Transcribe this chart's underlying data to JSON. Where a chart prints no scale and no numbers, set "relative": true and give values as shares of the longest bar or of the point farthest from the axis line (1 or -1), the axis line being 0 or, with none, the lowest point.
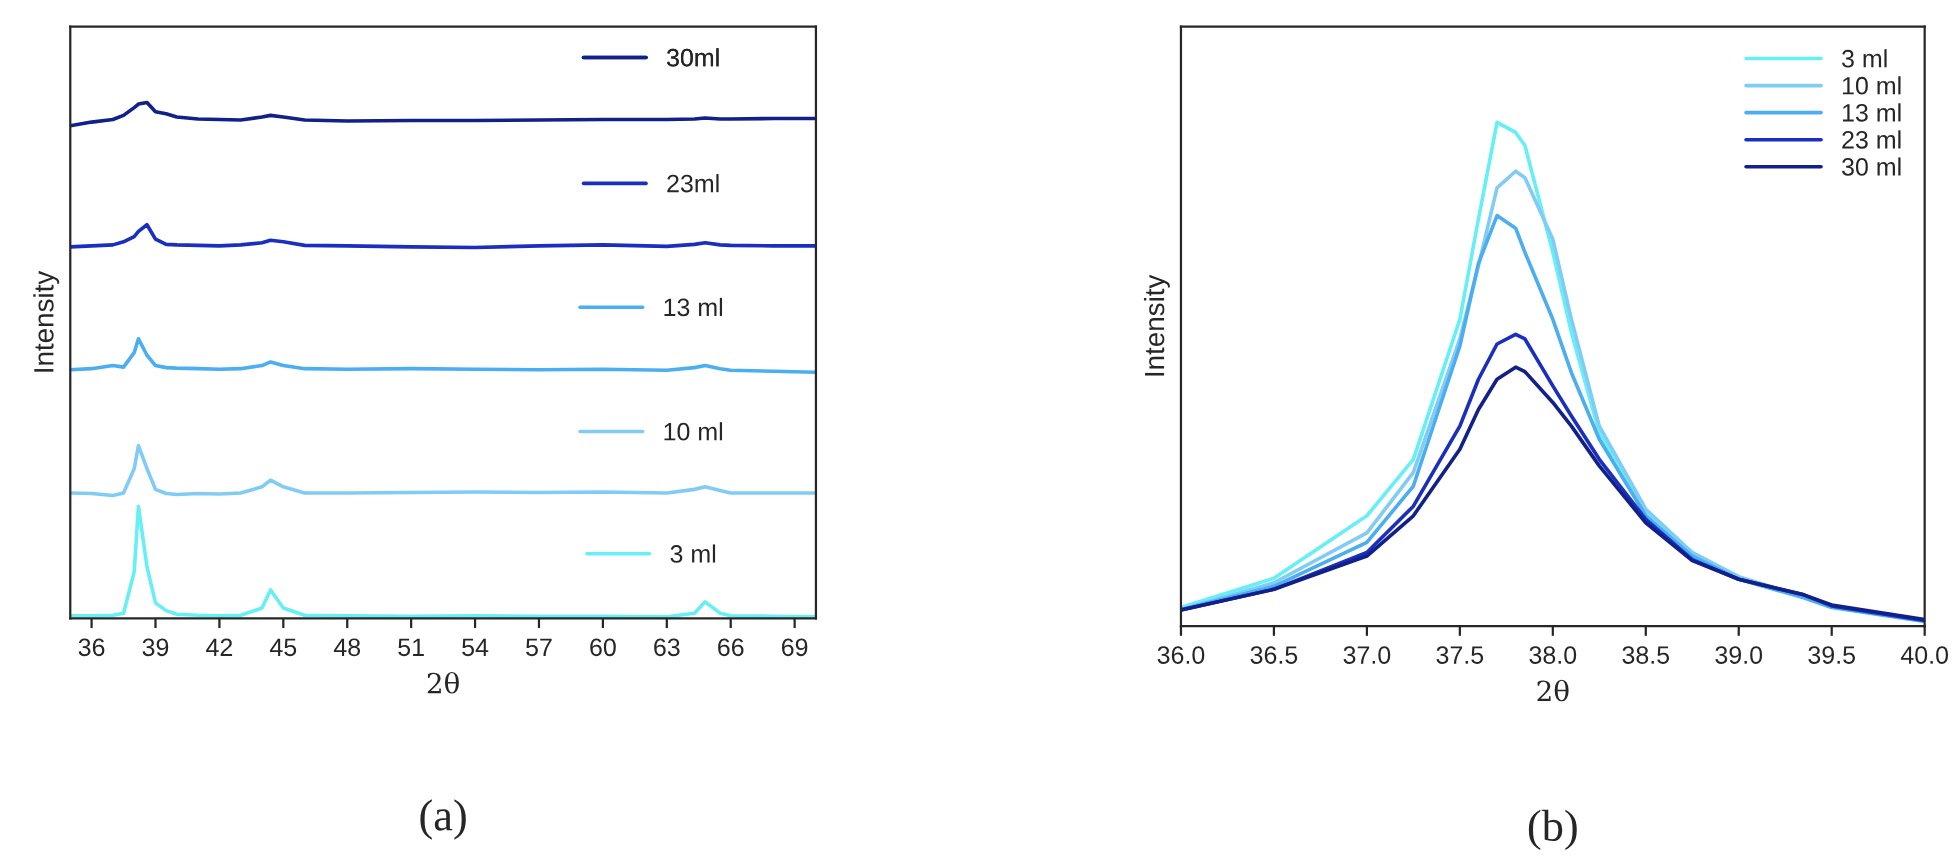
{
  "chart_data": [
    {
      "type": "line",
      "relative": true,
      "xlabel": "2θ",
      "ylabel": "Intensity",
      "xlim": [
        35,
        70
      ],
      "xticks": [
        36,
        39,
        42,
        45,
        48,
        51,
        54,
        57,
        60,
        63,
        66,
        69
      ],
      "legend": "right",
      "annotations": [
        "(a)"
      ],
      "x": [
        35,
        36,
        37,
        37.5,
        38,
        38.2,
        38.6,
        39,
        39.5,
        40,
        41,
        42,
        43,
        44,
        44.4,
        45,
        46,
        48,
        51,
        54,
        57,
        60,
        63,
        64.3,
        64.8,
        65.5,
        66,
        68,
        70
      ],
      "series": [
        {
          "name": "3 ml",
          "color": "#66f0f5",
          "values": [
            0.005,
            0.005,
            0.006,
            0.01,
            0.09,
            0.217,
            0.1,
            0.03,
            0.015,
            0.008,
            0.006,
            0.005,
            0.006,
            0.02,
            0.055,
            0.02,
            0.006,
            0.005,
            0.004,
            0.005,
            0.004,
            0.004,
            0.003,
            0.01,
            0.032,
            0.01,
            0.005,
            0.004,
            0.003
          ]
        },
        {
          "name": "10 ml",
          "color": "#80ccf5",
          "values": [
            0.243,
            0.242,
            0.238,
            0.243,
            0.29,
            0.335,
            0.29,
            0.25,
            0.242,
            0.24,
            0.242,
            0.241,
            0.243,
            0.255,
            0.268,
            0.255,
            0.243,
            0.243,
            0.244,
            0.245,
            0.244,
            0.245,
            0.243,
            0.25,
            0.255,
            0.248,
            0.243,
            0.243,
            0.243
          ]
        },
        {
          "name": "13 ml",
          "color": "#4aaef0",
          "values": [
            0.482,
            0.484,
            0.49,
            0.487,
            0.515,
            0.542,
            0.51,
            0.49,
            0.486,
            0.485,
            0.484,
            0.483,
            0.484,
            0.49,
            0.497,
            0.49,
            0.484,
            0.483,
            0.484,
            0.483,
            0.482,
            0.483,
            0.481,
            0.486,
            0.49,
            0.484,
            0.481,
            0.479,
            0.477
          ]
        },
        {
          "name": "23ml",
          "color": "#1a2fc0",
          "values": [
            0.72,
            0.722,
            0.724,
            0.73,
            0.74,
            0.75,
            0.763,
            0.735,
            0.725,
            0.724,
            0.723,
            0.722,
            0.724,
            0.728,
            0.733,
            0.73,
            0.723,
            0.722,
            0.72,
            0.719,
            0.722,
            0.724,
            0.721,
            0.725,
            0.728,
            0.724,
            0.723,
            0.722,
            0.722
          ]
        },
        {
          "name": "30ml",
          "color": "#12208a",
          "values": [
            0.955,
            0.962,
            0.967,
            0.975,
            0.99,
            0.997,
            1.0,
            0.982,
            0.978,
            0.972,
            0.968,
            0.967,
            0.966,
            0.972,
            0.975,
            0.972,
            0.966,
            0.964,
            0.965,
            0.965,
            0.966,
            0.967,
            0.967,
            0.968,
            0.97,
            0.968,
            0.968,
            0.969,
            0.969
          ]
        }
      ]
    },
    {
      "type": "line",
      "relative": true,
      "xlabel": "2θ",
      "ylabel": "Intensity",
      "xlim": [
        36,
        40
      ],
      "xticks": [
        {
          "value": 36,
          "label": "36.0"
        },
        {
          "value": 36.5,
          "label": "36.5"
        },
        {
          "value": 37,
          "label": "37.0"
        },
        {
          "value": 37.5,
          "label": "37.5"
        },
        {
          "value": 38,
          "label": "38.0"
        },
        {
          "value": 38.5,
          "label": "38.5"
        },
        {
          "value": 39,
          "label": "39.0"
        },
        {
          "value": 39.5,
          "label": "39.5"
        },
        {
          "value": 40,
          "label": "40.0"
        }
      ],
      "legend": "top right",
      "annotations": [
        "(b)"
      ],
      "x": [
        36.0,
        36.5,
        37.0,
        37.25,
        37.5,
        37.6,
        37.7,
        37.8,
        37.85,
        38.0,
        38.1,
        38.25,
        38.5,
        38.75,
        39.0,
        39.35,
        39.5,
        40.0
      ],
      "series": [
        {
          "name": "3 ml",
          "color": "#66f0f5",
          "values": [
            0.037,
            0.095,
            0.219,
            0.331,
            0.609,
            0.808,
            1.0,
            0.98,
            0.954,
            0.742,
            0.583,
            0.384,
            0.225,
            0.146,
            0.097,
            0.058,
            0.04,
            0.011
          ]
        },
        {
          "name": "10 ml",
          "color": "#80ccf5",
          "values": [
            0.033,
            0.086,
            0.185,
            0.305,
            0.57,
            0.715,
            0.87,
            0.903,
            0.89,
            0.768,
            0.609,
            0.397,
            0.232,
            0.146,
            0.098,
            0.058,
            0.04,
            0.011
          ]
        },
        {
          "name": "13 ml",
          "color": "#4aaef0",
          "values": [
            0.033,
            0.079,
            0.166,
            0.278,
            0.556,
            0.72,
            0.815,
            0.79,
            0.742,
            0.609,
            0.503,
            0.371,
            0.219,
            0.139,
            0.093,
            0.056,
            0.037,
            0.009
          ]
        },
        {
          "name": "23 ml",
          "color": "#1a2fc0",
          "values": [
            0.032,
            0.073,
            0.146,
            0.238,
            0.397,
            0.49,
            0.56,
            0.579,
            0.57,
            0.477,
            0.417,
            0.331,
            0.212,
            0.132,
            0.093,
            0.062,
            0.04,
            0.011
          ]
        },
        {
          "name": "30 ml",
          "color": "#12208a",
          "values": [
            0.032,
            0.073,
            0.139,
            0.219,
            0.351,
            0.43,
            0.49,
            0.514,
            0.505,
            0.444,
            0.397,
            0.318,
            0.205,
            0.13,
            0.093,
            0.062,
            0.042,
            0.013
          ]
        }
      ]
    }
  ]
}
